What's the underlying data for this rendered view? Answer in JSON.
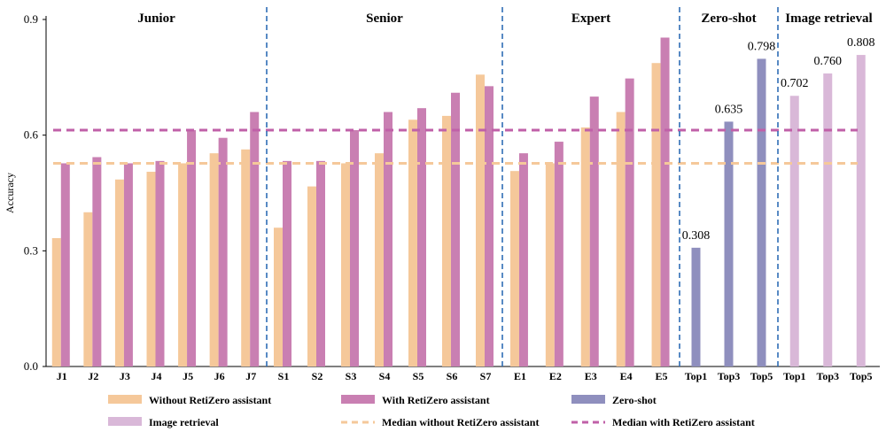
{
  "chart_data": {
    "type": "bar",
    "ylabel": "Accuracy",
    "ylim": [
      0,
      0.9
    ],
    "yticks": [
      "0.0",
      "0.3",
      "0.6",
      "0.9"
    ],
    "grid": false,
    "colors": {
      "without": "#f5c89a",
      "with": "#c97fb2",
      "zero_shot": "#8f8fbe",
      "image_retrieval": "#d9b8d8",
      "median_without": "#f5c89a",
      "median_with": "#c060a8",
      "separator": "#2f6db5"
    },
    "groups": [
      {
        "name": "Junior",
        "categories": [
          "J1",
          "J2",
          "J3",
          "J4",
          "J5",
          "J6",
          "J7"
        ]
      },
      {
        "name": "Senior",
        "categories": [
          "S1",
          "S2",
          "S3",
          "S4",
          "S5",
          "S6",
          "S7"
        ]
      },
      {
        "name": "Expert",
        "categories": [
          "E1",
          "E2",
          "E3",
          "E4",
          "E5"
        ]
      },
      {
        "name": "Zero-shot",
        "categories": [
          "Top1",
          "Top3",
          "Top5"
        ]
      },
      {
        "name": "Image retrieval",
        "categories": [
          "Top1",
          "Top3",
          "Top5"
        ]
      }
    ],
    "series": [
      {
        "name": "Without RetiZero assistant",
        "key": "without",
        "values": [
          0.333,
          0.4,
          0.485,
          0.505,
          0.527,
          0.553,
          0.563,
          0.36,
          0.467,
          0.527,
          0.553,
          0.64,
          0.65,
          0.757,
          0.507,
          0.527,
          0.62,
          0.66,
          0.787
        ]
      },
      {
        "name": "With RetiZero assistant",
        "key": "with",
        "values": [
          0.527,
          0.543,
          0.527,
          0.533,
          0.613,
          0.593,
          0.66,
          0.533,
          0.533,
          0.613,
          0.66,
          0.67,
          0.71,
          0.727,
          0.553,
          0.583,
          0.7,
          0.747,
          0.853
        ]
      },
      {
        "name": "Zero-shot",
        "key": "zero_shot",
        "values": [
          0.308,
          0.635,
          0.798
        ],
        "labels": [
          "0.308",
          "0.635",
          "0.798"
        ]
      },
      {
        "name": "Image retrieval",
        "key": "image_retrieval",
        "values": [
          0.702,
          0.76,
          0.808
        ],
        "labels": [
          "0.702",
          "0.760",
          "0.808"
        ]
      }
    ],
    "medians": [
      {
        "name": "Median without RetiZero assistant",
        "key": "median_without",
        "value": 0.527
      },
      {
        "name": "Median with RetiZero assistant",
        "key": "median_with",
        "value": 0.613
      }
    ],
    "legend": [
      {
        "label": "Without RetiZero assistant",
        "kind": "bar",
        "color_key": "without"
      },
      {
        "label": "With RetiZero assistant",
        "kind": "bar",
        "color_key": "with"
      },
      {
        "label": "Zero-shot",
        "kind": "bar",
        "color_key": "zero_shot"
      },
      {
        "label": "Image retrieval",
        "kind": "bar",
        "color_key": "image_retrieval"
      },
      {
        "label": "Median without RetiZero assistant",
        "kind": "dash",
        "color_key": "median_without"
      },
      {
        "label": "Median with RetiZero assistant",
        "kind": "dash",
        "color_key": "median_with"
      }
    ],
    "legend_position": "bottom"
  }
}
